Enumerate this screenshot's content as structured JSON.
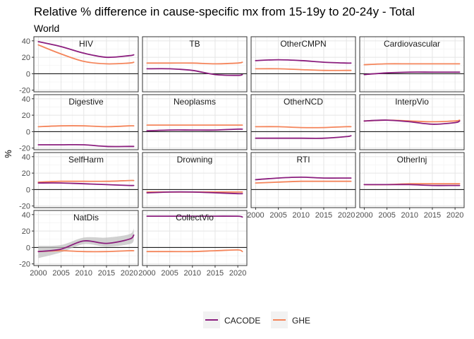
{
  "title": "Relative % difference in cause-specific mx from 15-19y to 20-24y - Total",
  "subtitle": "World",
  "chart_data": {
    "type": "line",
    "ylabel": "%",
    "xlabel": "",
    "ylim": [
      -22,
      45
    ],
    "xlim": [
      1999,
      2022
    ],
    "x_ticks": [
      2000,
      2005,
      2010,
      2015,
      2020
    ],
    "y_ticks": [
      -20,
      0,
      20,
      40
    ],
    "grid": true,
    "legend_position": "bottom",
    "series_names": [
      "CACODE",
      "GHE"
    ],
    "colors": {
      "CACODE": "#8B1E7E",
      "GHE": "#F4855B",
      "band": "#BDBDBD",
      "zero": "#000000"
    },
    "x": [
      2000,
      2005,
      2010,
      2015,
      2020,
      2021
    ],
    "panels": [
      {
        "title": "HIV",
        "series": [
          {
            "name": "CACODE",
            "values": [
              39,
              33,
              25,
              20,
              22,
              23
            ]
          },
          {
            "name": "GHE",
            "values": [
              35,
              24,
              15,
              12,
              13,
              14
            ]
          }
        ]
      },
      {
        "title": "TB",
        "series": [
          {
            "name": "CACODE",
            "values": [
              6,
              6,
              4,
              -1,
              -2,
              -1
            ]
          },
          {
            "name": "GHE",
            "values": [
              13,
              13,
              13,
              12,
              13,
              14
            ]
          }
        ]
      },
      {
        "title": "OtherCMPN",
        "series": [
          {
            "name": "CACODE",
            "values": [
              16,
              17,
              16,
              14,
              13,
              13
            ]
          },
          {
            "name": "GHE",
            "values": [
              6,
              6,
              5,
              4,
              4,
              4
            ]
          }
        ]
      },
      {
        "title": "Cardiovascular",
        "series": [
          {
            "name": "CACODE",
            "values": [
              -1,
              1,
              2,
              2,
              2,
              2
            ]
          },
          {
            "name": "GHE",
            "values": [
              11,
              12,
              12,
              12,
              12,
              12
            ]
          }
        ]
      },
      {
        "title": "Digestive",
        "series": [
          {
            "name": "CACODE",
            "values": [
              -16,
              -16,
              -16,
              -18,
              -18,
              -18
            ]
          },
          {
            "name": "GHE",
            "values": [
              6,
              7,
              7,
              6,
              7,
              7
            ]
          }
        ]
      },
      {
        "title": "Neoplasms",
        "series": [
          {
            "name": "CACODE",
            "values": [
              1,
              2,
              2,
              2,
              3,
              3
            ]
          },
          {
            "name": "GHE",
            "values": [
              8,
              8,
              8,
              8,
              8,
              8
            ]
          }
        ]
      },
      {
        "title": "OtherNCD",
        "series": [
          {
            "name": "CACODE",
            "values": [
              -8,
              -8,
              -8,
              -8,
              -6,
              -5
            ]
          },
          {
            "name": "GHE",
            "values": [
              6,
              6,
              5,
              5,
              6,
              6
            ]
          }
        ]
      },
      {
        "title": "InterpVio",
        "series": [
          {
            "name": "CACODE",
            "values": [
              13,
              14,
              12,
              9,
              11,
              13
            ]
          },
          {
            "name": "GHE",
            "values": [
              13,
              14,
              13,
              12,
              13,
              14
            ]
          }
        ]
      },
      {
        "title": "SelfHarm",
        "series": [
          {
            "name": "CACODE",
            "values": [
              8,
              8,
              7,
              6,
              5,
              5
            ]
          },
          {
            "name": "GHE",
            "values": [
              9,
              10,
              10,
              10,
              11,
              11
            ]
          }
        ]
      },
      {
        "title": "Drowning",
        "series": [
          {
            "name": "CACODE",
            "values": [
              -4,
              -3,
              -3,
              -4,
              -5,
              -5
            ]
          },
          {
            "name": "GHE",
            "values": [
              -3,
              -3,
              -3,
              -3,
              -3,
              -3
            ]
          }
        ]
      },
      {
        "title": "RTI",
        "series": [
          {
            "name": "CACODE",
            "values": [
              12,
              14,
              15,
              14,
              14,
              14
            ]
          },
          {
            "name": "GHE",
            "values": [
              8,
              9,
              10,
              10,
              10,
              10
            ]
          }
        ]
      },
      {
        "title": "OtherInj",
        "series": [
          {
            "name": "CACODE",
            "values": [
              6,
              6,
              6,
              5,
              5,
              5
            ]
          },
          {
            "name": "GHE",
            "values": [
              6,
              6,
              7,
              7,
              7,
              7
            ]
          }
        ]
      },
      {
        "title": "NatDis",
        "series": [
          {
            "name": "CACODE",
            "values": [
              -5,
              -2,
              8,
              5,
              10,
              15
            ]
          },
          {
            "name": "GHE",
            "values": [
              -5,
              -4,
              -5,
              -5,
              -4,
              -4
            ]
          }
        ],
        "band_lower": [
          -13,
          -6,
          4,
          1,
          4,
          8
        ],
        "band_upper": [
          2,
          3,
          12,
          12,
          16,
          23
        ]
      },
      {
        "title": "CollectVio",
        "series": [
          {
            "name": "CACODE",
            "values": [
              38,
              38,
              38,
              38,
              38,
              37
            ]
          },
          {
            "name": "GHE",
            "values": [
              -5,
              -5,
              -5,
              -4,
              -3,
              -5
            ]
          }
        ]
      }
    ]
  },
  "legend": {
    "items": [
      "CACODE",
      "GHE"
    ]
  }
}
